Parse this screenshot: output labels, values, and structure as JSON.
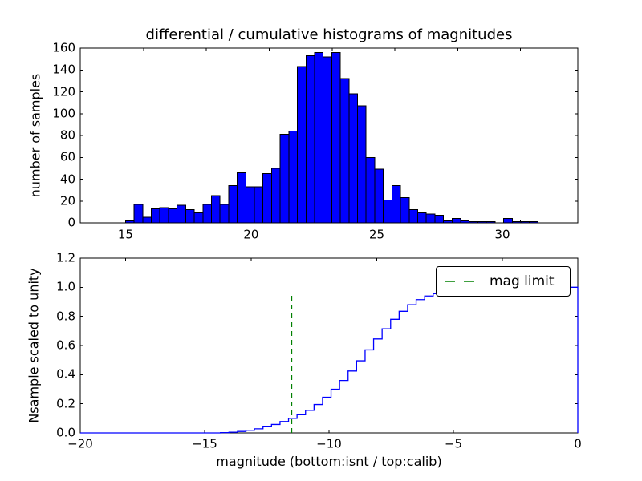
{
  "figure": {
    "title": "differential / cumulative histograms of magnitudes",
    "xlabel": "magnitude (bottom:isnt / top:calib)",
    "background": "#ffffff",
    "spine_color": "#000000",
    "bar_fill": "#0000ff",
    "bar_edge": "#000000",
    "line_color": "#0000ff",
    "mag_limit_color": "#008000"
  },
  "top_plot": {
    "ylabel": "number of samples",
    "xlim": [
      13.2,
      33.0
    ],
    "ylim": [
      0,
      160
    ],
    "xticks": [
      15,
      20,
      25,
      30
    ],
    "xtick_labels": [
      "15",
      "20",
      "25",
      "30"
    ],
    "yticks": [
      0,
      20,
      40,
      60,
      80,
      100,
      120,
      140,
      160
    ],
    "ytick_labels": [
      "0",
      "20",
      "40",
      "60",
      "80",
      "100",
      "120",
      "140",
      "160"
    ],
    "secondary_xticks": [
      15.72,
      18.22,
      20.72,
      23.22,
      25.72,
      28.22,
      30.72
    ]
  },
  "bottom_plot": {
    "ylabel": "Nsample scaled to unity",
    "xlim": [
      -20,
      0
    ],
    "ylim": [
      0,
      1.2
    ],
    "xticks": [
      -20,
      -15,
      -10,
      -5,
      0
    ],
    "xtick_labels": [
      "−20",
      "−15",
      "−10",
      "−5",
      "0"
    ],
    "yticks": [
      0,
      0.2,
      0.4,
      0.6,
      0.8,
      1.0,
      1.2
    ],
    "ytick_labels": [
      "0.0",
      "0.2",
      "0.4",
      "0.6",
      "0.8",
      "1.0",
      "1.2"
    ],
    "top_axis_ticks": [
      15,
      20,
      25,
      30
    ],
    "legend": {
      "label": "mag limit"
    }
  },
  "chart_data": [
    {
      "type": "bar",
      "subtype": "histogram",
      "title": "differential / cumulative histograms of magnitudes",
      "xlabel": "magnitude (top:calib)",
      "ylabel": "number of samples",
      "bin_start": 15.0,
      "bin_width": 0.342,
      "counts": [
        2,
        17,
        5,
        13,
        14,
        13,
        16,
        12,
        9,
        17,
        25,
        17,
        34,
        46,
        33,
        33,
        45,
        50,
        81,
        84,
        143,
        153,
        156,
        152,
        156,
        132,
        118,
        107,
        60,
        49,
        21,
        34,
        23,
        12,
        9,
        8,
        7,
        2,
        4,
        2,
        1,
        1,
        1,
        0,
        4,
        1,
        1,
        1
      ],
      "xlim": [
        13.2,
        33.0
      ],
      "ylim": [
        0,
        160
      ],
      "grid": false,
      "bar_color": "#0000ff"
    },
    {
      "type": "line",
      "subtype": "cumulative-step",
      "xlabel": "magnitude (bottom:isnt)",
      "ylabel": "Nsample scaled to unity",
      "step_start": -14.364,
      "step_width": 0.342,
      "levels": [
        0.002,
        0.005,
        0.01,
        0.018,
        0.028,
        0.042,
        0.058,
        0.078,
        0.1,
        0.125,
        0.155,
        0.195,
        0.245,
        0.3,
        0.36,
        0.425,
        0.495,
        0.57,
        0.645,
        0.715,
        0.78,
        0.835,
        0.88,
        0.915,
        0.94,
        0.956,
        0.966,
        0.973,
        0.978,
        0.982,
        0.985,
        0.988,
        0.99,
        0.992,
        0.994,
        0.995,
        0.996,
        0.997,
        0.998,
        0.999,
        0.9995,
        1.0
      ],
      "xlim": [
        -20,
        0
      ],
      "ylim": [
        0,
        1.2
      ],
      "grid": false,
      "line_color": "#0000ff",
      "legend_position": "upper right",
      "mag_limit": {
        "x": -11.5,
        "y_bottom": 0,
        "y_top": 0.96,
        "label": "mag limit",
        "color": "#008000",
        "linestyle": "dashed"
      }
    }
  ]
}
